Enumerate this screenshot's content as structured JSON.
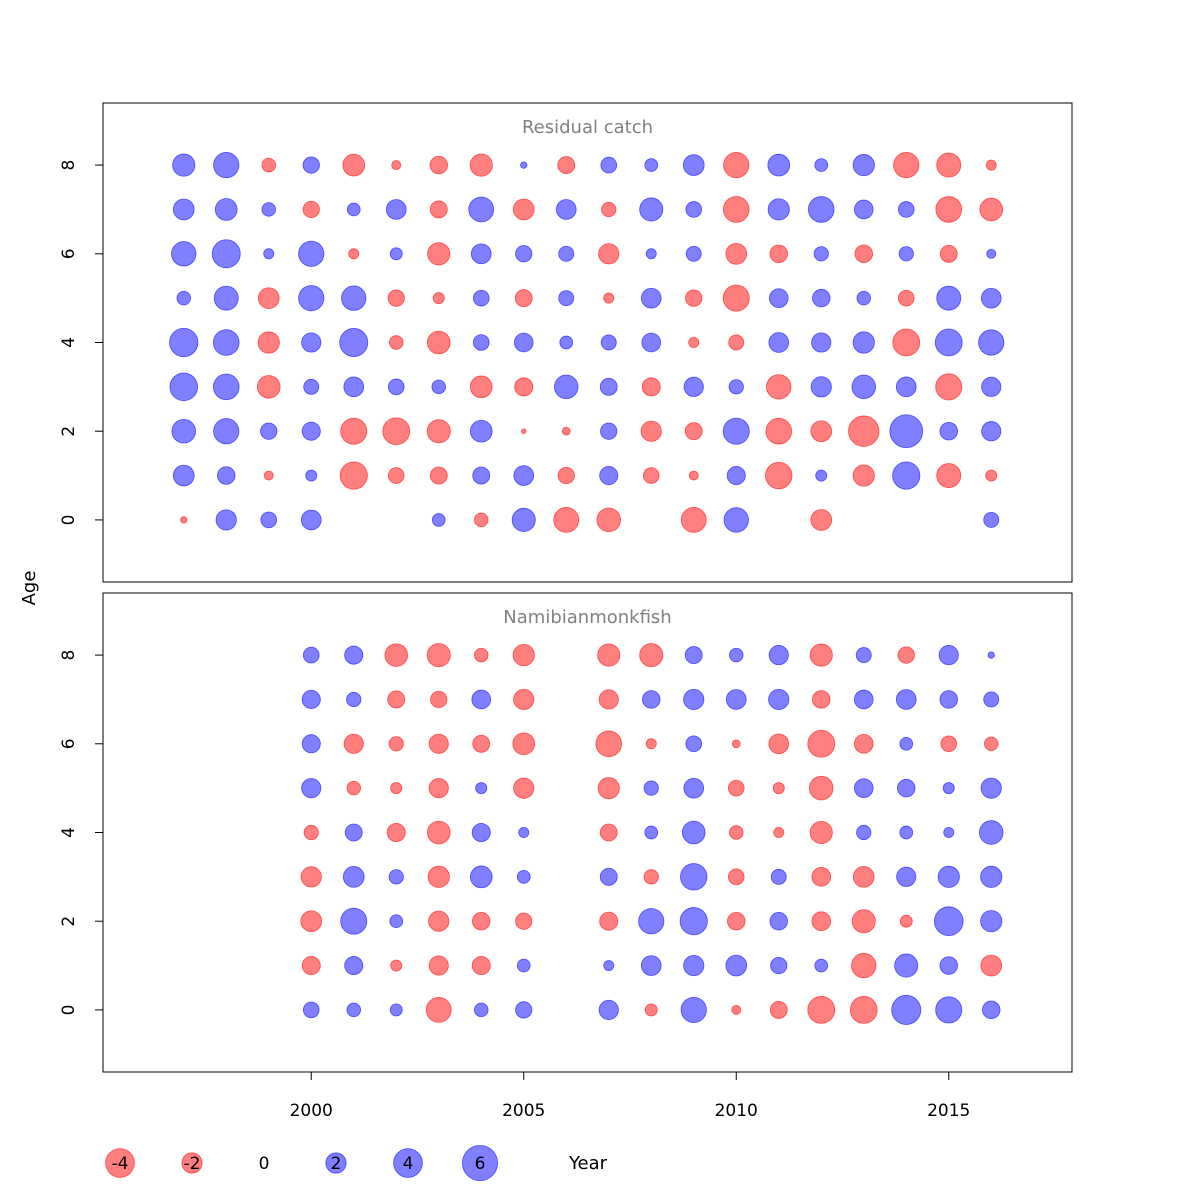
{
  "colors": {
    "positive": "#0000ff",
    "negative": "#ff0000",
    "fill_alpha": 0.5
  },
  "chart_data": {
    "type": "bubble",
    "xlabel": "Year",
    "ylabel": "Age",
    "xlim": [
      1995.1,
      2017.9
    ],
    "ylim": [
      -1.4,
      9.4
    ],
    "x_ticks": [
      {
        "value": 2000,
        "label": "2000"
      },
      {
        "value": 2005,
        "label": "2005"
      },
      {
        "value": 2010,
        "label": "2010"
      },
      {
        "value": 2015,
        "label": "2015"
      }
    ],
    "y_ticks": [
      {
        "value": 0,
        "label": "0"
      },
      {
        "value": 2,
        "label": "2"
      },
      {
        "value": 4,
        "label": "4"
      },
      {
        "value": 6,
        "label": "6"
      },
      {
        "value": 8,
        "label": "8"
      }
    ],
    "ages": [
      0,
      1,
      2,
      3,
      4,
      5,
      6,
      7,
      8
    ],
    "legend": [
      {
        "value": -4,
        "label": "-4"
      },
      {
        "value": -2,
        "label": "-2"
      },
      {
        "value": 0,
        "label": "0"
      },
      {
        "value": 2,
        "label": "2"
      },
      {
        "value": 4,
        "label": "4"
      },
      {
        "value": 6,
        "label": "6"
      }
    ],
    "panels": [
      {
        "title": "Residual catch",
        "years": [
          1997,
          1998,
          1999,
          2000,
          2001,
          2002,
          2003,
          2004,
          2005,
          2006,
          2007,
          2008,
          2009,
          2010,
          2011,
          2012,
          2013,
          2014,
          2015,
          2016
        ],
        "residuals": [
          [
            -0.2,
            2.0,
            1.2,
            1.9,
            null,
            null,
            0.8,
            -0.9,
            2.6,
            -3.0,
            -2.7,
            null,
            -3.0,
            2.9,
            null,
            -2.1,
            null,
            null,
            null,
            1.1
          ],
          [
            2.1,
            1.5,
            -0.4,
            0.6,
            -3.6,
            -1.2,
            -1.4,
            1.4,
            1.9,
            -1.3,
            1.6,
            -1.2,
            -0.4,
            1.6,
            -3.4,
            0.6,
            -2.2,
            3.6,
            -2.8,
            -0.6
          ],
          [
            2.7,
            3.1,
            1.3,
            1.6,
            -3.3,
            -3.5,
            -2.6,
            2.3,
            -0.1,
            -0.3,
            1.3,
            -2.0,
            -1.4,
            3.3,
            -3.2,
            -2.1,
            -4.5,
            5.2,
            1.5,
            1.8
          ],
          [
            3.7,
            3.2,
            -2.5,
            1.1,
            1.9,
            1.2,
            0.9,
            -2.3,
            -1.6,
            2.7,
            1.4,
            -1.6,
            1.8,
            1.0,
            -2.9,
            2.0,
            2.7,
            1.9,
            -3.3,
            1.8
          ],
          [
            3.9,
            3.2,
            -2.2,
            1.8,
            3.8,
            -0.9,
            -2.5,
            1.2,
            1.7,
            0.8,
            1.1,
            1.7,
            -0.5,
            -1.1,
            1.9,
            1.8,
            2.2,
            -3.5,
            3.5,
            3.1
          ],
          [
            0.9,
            2.8,
            -2.1,
            3.1,
            2.9,
            -1.3,
            -0.6,
            1.2,
            -1.4,
            1.1,
            -0.5,
            1.9,
            -1.3,
            -3.3,
            1.7,
            1.5,
            0.9,
            -1.2,
            2.8,
            1.9
          ],
          [
            2.9,
            3.8,
            0.5,
            3.1,
            -0.5,
            0.7,
            -2.4,
            1.9,
            1.3,
            1.1,
            -2.0,
            0.5,
            1.1,
            -2.1,
            -1.5,
            1.0,
            -1.5,
            1.0,
            -1.4,
            0.4
          ],
          [
            2.1,
            2.3,
            0.9,
            -1.3,
            0.8,
            1.9,
            -1.4,
            3.0,
            -2.1,
            1.9,
            -1.0,
            2.6,
            1.2,
            -3.2,
            2.2,
            3.2,
            1.7,
            1.2,
            -3.2,
            -2.5
          ],
          [
            2.4,
            3.1,
            -0.9,
            1.3,
            -2.3,
            -0.4,
            -1.5,
            -2.4,
            0.2,
            -1.4,
            1.2,
            0.8,
            2.1,
            -3.1,
            2.3,
            0.8,
            2.2,
            -3.1,
            -2.8,
            -0.5
          ]
        ]
      },
      {
        "title": "Namibianmonkfish",
        "years": [
          2000,
          2001,
          2002,
          2003,
          2004,
          2005,
          2007,
          2008,
          2009,
          2010,
          2011,
          2012,
          2013,
          2014,
          2015,
          2016
        ],
        "residuals": [
          [
            1.2,
            0.9,
            0.7,
            -3.0,
            0.9,
            1.3,
            1.8,
            -0.7,
            3.1,
            -0.4,
            -1.4,
            -3.5,
            -3.5,
            4.1,
            3.3,
            1.5
          ],
          [
            -1.6,
            1.6,
            -0.6,
            -1.8,
            -1.6,
            0.8,
            0.5,
            1.9,
            2.0,
            2.1,
            1.3,
            0.8,
            -2.9,
            2.6,
            1.5,
            -2.1
          ],
          [
            -2.1,
            3.3,
            0.8,
            -2.0,
            -1.5,
            -1.3,
            -1.6,
            3.1,
            3.6,
            -1.5,
            1.5,
            -1.7,
            -2.6,
            -0.7,
            4.0,
            2.2
          ],
          [
            -2.0,
            2.1,
            1.0,
            -2.2,
            2.3,
            0.8,
            1.4,
            -1.0,
            3.4,
            -1.2,
            1.1,
            -1.7,
            -2.1,
            1.8,
            2.2,
            2.2
          ],
          [
            -1.0,
            1.4,
            -1.6,
            -2.5,
            1.6,
            0.5,
            -1.4,
            0.8,
            2.5,
            -0.9,
            -0.5,
            -2.4,
            1.0,
            0.8,
            0.5,
            2.7
          ],
          [
            1.8,
            -0.9,
            -0.6,
            -1.8,
            0.6,
            -2.0,
            -2.2,
            1.0,
            1.9,
            -1.2,
            -0.6,
            -2.7,
            1.7,
            1.5,
            0.6,
            2.0
          ],
          [
            1.6,
            -1.8,
            -1.0,
            -1.8,
            -1.4,
            -2.3,
            -3.2,
            -0.5,
            1.2,
            -0.3,
            -1.9,
            -3.5,
            -1.7,
            0.8,
            -1.2,
            -0.9
          ],
          [
            1.6,
            1.0,
            -1.4,
            -1.3,
            1.7,
            -2.0,
            -1.8,
            1.5,
            2.0,
            1.9,
            2.0,
            -1.5,
            1.7,
            1.9,
            1.5,
            1.1
          ],
          [
            1.2,
            1.6,
            -2.5,
            -2.6,
            -0.9,
            -2.2,
            -2.4,
            -2.6,
            1.4,
            0.9,
            1.8,
            -2.4,
            1.1,
            -1.3,
            1.8,
            0.2
          ]
        ]
      }
    ]
  }
}
